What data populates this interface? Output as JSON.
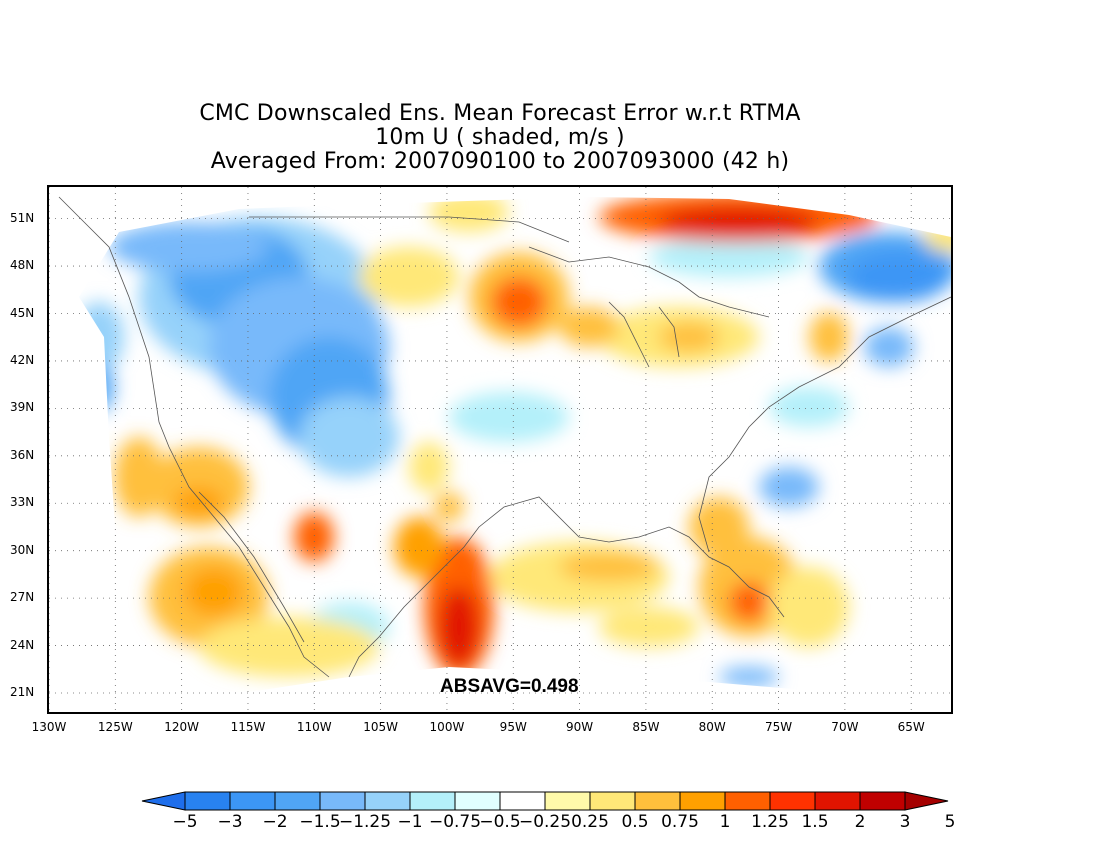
{
  "title": {
    "line1": "CMC Downscaled Ens. Mean Forecast Error w.r.t RTMA",
    "line2": "10m U ( shaded, m/s )",
    "line3": "Averaged From: 2007090100 to 2007093000 (42 h)"
  },
  "annotation": "ABSAVG=0.498",
  "map": {
    "lat_labels": [
      "51N",
      "48N",
      "45N",
      "42N",
      "39N",
      "36N",
      "33N",
      "30N",
      "27N",
      "24N",
      "21N"
    ],
    "lon_labels": [
      "130W",
      "125W",
      "120W",
      "115W",
      "110W",
      "105W",
      "100W",
      "95W",
      "90W",
      "85W",
      "80W",
      "75W",
      "70W",
      "65W"
    ],
    "lat_values": [
      51,
      48,
      45,
      42,
      39,
      36,
      33,
      30,
      27,
      24,
      21
    ],
    "lon_values": [
      -130,
      -125,
      -120,
      -115,
      -110,
      -105,
      -100,
      -95,
      -90,
      -85,
      -80,
      -75,
      -70,
      -65
    ],
    "lat_range": [
      19.8,
      53.0
    ],
    "lon_range": [
      -130,
      -62
    ]
  },
  "colorbar": {
    "labels": [
      "-5",
      "-3",
      "-2",
      "-1.5",
      "-1.25",
      "-1",
      "-0.75",
      "-0.5",
      "-0.25",
      "0.25",
      "0.5",
      "0.75",
      "1",
      "1.25",
      "1.5",
      "2",
      "3",
      "5"
    ],
    "colors": [
      "#1e6eeb",
      "#2882f0",
      "#3c96f5",
      "#50a5f5",
      "#78b9fa",
      "#96d2fa",
      "#b4f0fa",
      "#e1ffff",
      "#ffffff",
      "#fffaaa",
      "#ffe878",
      "#ffc03c",
      "#ffa000",
      "#ff6000",
      "#ff3200",
      "#e11400",
      "#c00000",
      "#a50000"
    ]
  }
}
